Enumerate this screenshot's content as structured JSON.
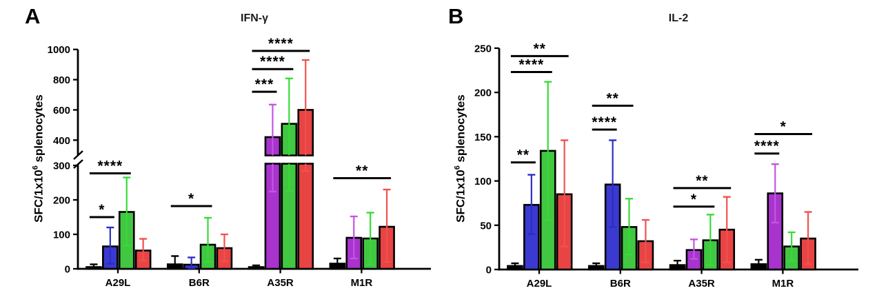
{
  "figure": {
    "panel_a": {
      "letter": "A",
      "title": "IFN-γ",
      "ylabel_pre": "SFC/1x10",
      "ylabel_sup": "6",
      "ylabel_post": " splenocytes"
    },
    "panel_b": {
      "letter": "B",
      "title": "IL-2",
      "ylabel_pre": "SFC/1x10",
      "ylabel_sup": "6",
      "ylabel_post": " splenocytes"
    }
  },
  "colors": {
    "black": {
      "bar": "#000000",
      "err": "#000000"
    },
    "blue": {
      "bar": "#3a3ad0",
      "err": "#2d2dc4"
    },
    "green": {
      "bar": "#42c742",
      "err": "#38da38"
    },
    "red": {
      "bar": "#e94444",
      "err": "#f25050"
    },
    "purple": {
      "bar": "#a833cd",
      "err": "#c455e2"
    }
  },
  "chart_data": [
    {
      "type": "bar",
      "panel": "A",
      "title": "IFN-γ",
      "ylabel": "SFC/1x10⁶ splenocytes",
      "categories": [
        "A29L",
        "B6R",
        "A35R",
        "M1R"
      ],
      "ylim": [
        0,
        1000
      ],
      "axis_break": {
        "lower_max": 300,
        "upper_min": 400
      },
      "yticks_lower": [
        0,
        100,
        200,
        300
      ],
      "yticks_upper": [
        400,
        600,
        800,
        1000
      ],
      "grid": false,
      "legend": "none",
      "groups": [
        {
          "category": "A29L",
          "bars": [
            {
              "color": "black",
              "value": 5,
              "err_low": 1,
              "err_high": 13
            },
            {
              "color": "blue",
              "value": 65,
              "err_low": 15,
              "err_high": 120
            },
            {
              "color": "green",
              "value": 165,
              "err_low": 67,
              "err_high": 265
            },
            {
              "color": "red",
              "value": 53,
              "err_low": 24,
              "err_high": 87
            }
          ],
          "significance": [
            {
              "from": 0,
              "to": 1,
              "label": "*",
              "y": 150
            },
            {
              "from": 0,
              "to": 2,
              "label": "****",
              "y": 277
            }
          ]
        },
        {
          "category": "B6R",
          "bars": [
            {
              "color": "black",
              "value": 13,
              "err_low": 2,
              "err_high": 37
            },
            {
              "color": "blue",
              "value": 12,
              "err_low": 2,
              "err_high": 33
            },
            {
              "color": "green",
              "value": 70,
              "err_low": 20,
              "err_high": 148
            },
            {
              "color": "red",
              "value": 60,
              "err_low": 22,
              "err_high": 100
            }
          ],
          "significance": [
            {
              "from": 0,
              "to": 2,
              "label": "*",
              "y": 182
            }
          ]
        },
        {
          "category": "A35R",
          "bars": [
            {
              "color": "black",
              "value": 5,
              "err_low": 1,
              "err_high": 10
            },
            {
              "color": "purple",
              "value": 420,
              "err_low": 224,
              "err_high": 635
            },
            {
              "color": "green",
              "value": 508,
              "err_low": 226,
              "err_high": 808
            },
            {
              "color": "red",
              "value": 600,
              "err_low": 284,
              "err_high": 930
            }
          ],
          "significance": [
            {
              "from": 0,
              "to": 1,
              "label": "***",
              "y": 720
            },
            {
              "from": 0,
              "to": 2,
              "label": "****",
              "y": 870
            },
            {
              "from": 0,
              "to": 3,
              "label": "****",
              "y": 990
            }
          ]
        },
        {
          "category": "M1R",
          "bars": [
            {
              "color": "black",
              "value": 15,
              "err_low": 3,
              "err_high": 30
            },
            {
              "color": "purple",
              "value": 90,
              "err_low": 30,
              "err_high": 152
            },
            {
              "color": "green",
              "value": 88,
              "err_low": 13,
              "err_high": 163
            },
            {
              "color": "red",
              "value": 122,
              "err_low": 20,
              "err_high": 230
            }
          ],
          "significance": [
            {
              "from": 0,
              "to": 3,
              "label": "**",
              "y": 263
            }
          ]
        }
      ]
    },
    {
      "type": "bar",
      "panel": "B",
      "title": "IL-2",
      "ylabel": "SFC/1x10⁶ splenocytes",
      "categories": [
        "A29L",
        "B6R",
        "A35R",
        "M1R"
      ],
      "ylim": [
        0,
        250
      ],
      "yticks": [
        0,
        50,
        100,
        150,
        200,
        250
      ],
      "grid": false,
      "legend": "none",
      "groups": [
        {
          "category": "A29L",
          "bars": [
            {
              "color": "black",
              "value": 4,
              "err_low": 1,
              "err_high": 7
            },
            {
              "color": "blue",
              "value": 73,
              "err_low": 40,
              "err_high": 107
            },
            {
              "color": "green",
              "value": 134,
              "err_low": 56,
              "err_high": 212
            },
            {
              "color": "red",
              "value": 85,
              "err_low": 26,
              "err_high": 146
            }
          ],
          "significance": [
            {
              "from": 0,
              "to": 1,
              "label": "**",
              "y": 121
            },
            {
              "from": 0,
              "to": 2,
              "label": "****",
              "y": 223
            },
            {
              "from": 0,
              "to": 3,
              "label": "**",
              "y": 241
            }
          ]
        },
        {
          "category": "B6R",
          "bars": [
            {
              "color": "black",
              "value": 4,
              "err_low": 1,
              "err_high": 7
            },
            {
              "color": "blue",
              "value": 96,
              "err_low": 48,
              "err_high": 146
            },
            {
              "color": "green",
              "value": 48,
              "err_low": 17,
              "err_high": 80
            },
            {
              "color": "red",
              "value": 32,
              "err_low": 8,
              "err_high": 56
            }
          ],
          "significance": [
            {
              "from": 0,
              "to": 1,
              "label": "****",
              "y": 158
            },
            {
              "from": 0,
              "to": 2,
              "label": "**",
              "y": 185
            }
          ]
        },
        {
          "category": "A35R",
          "bars": [
            {
              "color": "black",
              "value": 5,
              "err_low": 1,
              "err_high": 10
            },
            {
              "color": "purple",
              "value": 22,
              "err_low": 12,
              "err_high": 34
            },
            {
              "color": "green",
              "value": 33,
              "err_low": 5,
              "err_high": 62
            },
            {
              "color": "red",
              "value": 45,
              "err_low": 8,
              "err_high": 82
            }
          ],
          "significance": [
            {
              "from": 0,
              "to": 2,
              "label": "*",
              "y": 71
            },
            {
              "from": 0,
              "to": 3,
              "label": "**",
              "y": 92
            }
          ]
        },
        {
          "category": "M1R",
          "bars": [
            {
              "color": "black",
              "value": 6,
              "err_low": 2,
              "err_high": 11
            },
            {
              "color": "purple",
              "value": 86,
              "err_low": 53,
              "err_high": 119
            },
            {
              "color": "green",
              "value": 26,
              "err_low": 10,
              "err_high": 42
            },
            {
              "color": "red",
              "value": 35,
              "err_low": 6,
              "err_high": 65
            }
          ],
          "significance": [
            {
              "from": 0,
              "to": 1,
              "label": "****",
              "y": 131
            },
            {
              "from": 0,
              "to": 3,
              "label": "*",
              "y": 153
            }
          ]
        }
      ]
    }
  ]
}
